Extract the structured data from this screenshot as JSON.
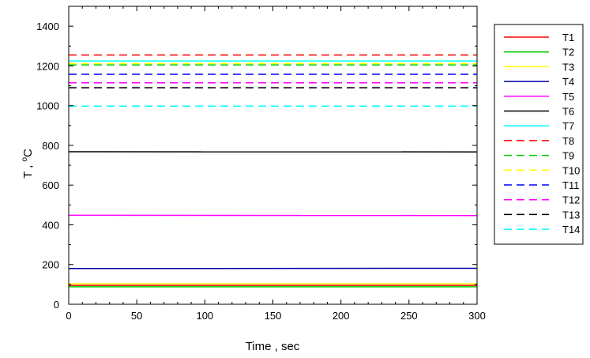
{
  "chart_data": {
    "type": "line",
    "title": "",
    "xlabel": "Time , sec",
    "ylabel_main": "T , ",
    "ylabel_sup": "o",
    "ylabel_end": "C",
    "xlim": [
      0,
      300
    ],
    "ylim": [
      0,
      1500
    ],
    "x_ticks": [
      0,
      50,
      100,
      150,
      200,
      250,
      300
    ],
    "y_ticks": [
      0,
      200,
      400,
      600,
      800,
      1000,
      1200,
      1400
    ],
    "grid": false,
    "legend_position": "right",
    "x": [
      0,
      300
    ],
    "series": [
      {
        "name": "T1",
        "values": [
          95,
          95
        ],
        "color": "#ff0000",
        "dash": "solid"
      },
      {
        "name": "T2",
        "values": [
          88,
          88
        ],
        "color": "#00cc00",
        "dash": "solid"
      },
      {
        "name": "T3",
        "values": [
          103,
          103
        ],
        "color": "#ffff00",
        "dash": "solid"
      },
      {
        "name": "T4",
        "values": [
          180,
          181
        ],
        "color": "#0000aa",
        "dash": "solid"
      },
      {
        "name": "T5",
        "values": [
          448,
          447
        ],
        "color": "#ff00ff",
        "dash": "solid"
      },
      {
        "name": "T6",
        "values": [
          768,
          767
        ],
        "color": "#000000",
        "dash": "solid"
      },
      {
        "name": "T7",
        "values": [
          1225,
          1225
        ],
        "color": "#00ffff",
        "dash": "solid"
      },
      {
        "name": "T8",
        "values": [
          1255,
          1255
        ],
        "color": "#ff0000",
        "dash": "dashed"
      },
      {
        "name": "T9",
        "values": [
          1205,
          1205
        ],
        "color": "#00cc00",
        "dash": "dashed"
      },
      {
        "name": "T10",
        "values": [
          1212,
          1212
        ],
        "color": "#ffff00",
        "dash": "dashed"
      },
      {
        "name": "T11",
        "values": [
          1158,
          1158
        ],
        "color": "#0000ff",
        "dash": "dashed"
      },
      {
        "name": "T12",
        "values": [
          1115,
          1115
        ],
        "color": "#ff00ff",
        "dash": "dashed"
      },
      {
        "name": "T13",
        "values": [
          1090,
          1090
        ],
        "color": "#000000",
        "dash": "dashed"
      },
      {
        "name": "T14",
        "values": [
          998,
          998
        ],
        "color": "#00ffff",
        "dash": "dashed"
      }
    ]
  }
}
